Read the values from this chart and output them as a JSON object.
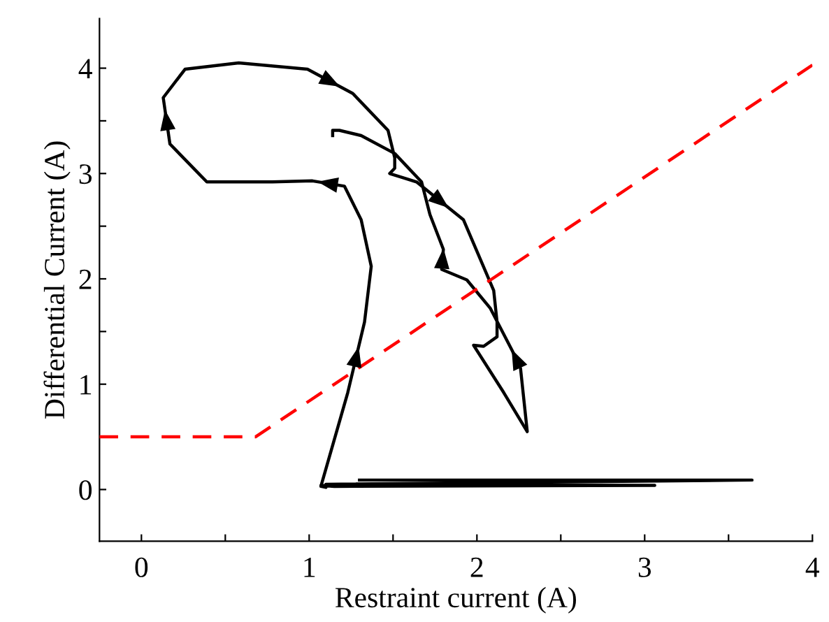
{
  "chart_data": {
    "type": "line",
    "xlabel": "Restraint current (A)",
    "ylabel": "Differential Current (A)",
    "xlim": [
      -0.25,
      4.0
    ],
    "ylim": [
      -0.49,
      4.47
    ],
    "xticks": [
      0,
      {
        "value": 0.5,
        "label": null
      },
      1,
      {
        "value": 1.5,
        "label": null
      },
      2,
      {
        "value": 2.5,
        "label": null
      },
      3,
      {
        "value": 3.5,
        "label": null
      },
      4
    ],
    "yticks": [
      0,
      {
        "value": 0.5,
        "label": null
      },
      1,
      {
        "value": 1.5,
        "label": null
      },
      2,
      {
        "value": 2.5,
        "label": null
      },
      3,
      {
        "value": 3.5,
        "label": null
      },
      4
    ],
    "grid": false,
    "legend": false,
    "marker": "none",
    "series": [
      {
        "color": "#000000",
        "line_style": "solid",
        "x": [
          1.3,
          3.64,
          1.1,
          3.06,
          1.15,
          1.07,
          1.1,
          1.07,
          1.23,
          1.33,
          1.37,
          1.31,
          1.21,
          1.02,
          0.78,
          0.39,
          0.17,
          0.13,
          0.26,
          0.58,
          0.99,
          1.26,
          1.47,
          1.51,
          1.51,
          1.48,
          1.64,
          1.92,
          2.1,
          2.12,
          2.12,
          2.04,
          1.98,
          2.16,
          2.3,
          2.26,
          2.21,
          2.08,
          1.94,
          1.79,
          1.8,
          1.72,
          1.67,
          1.51,
          1.31,
          1.18,
          1.14,
          1.14
        ],
        "values": [
          0.09,
          0.09,
          0.05,
          0.04,
          0.03,
          0.04,
          0.02,
          0.03,
          0.92,
          1.59,
          2.12,
          2.56,
          2.88,
          2.93,
          2.92,
          2.92,
          3.28,
          3.72,
          3.99,
          4.05,
          3.99,
          3.76,
          3.41,
          3.15,
          3.05,
          3.0,
          2.92,
          2.56,
          1.89,
          1.59,
          1.45,
          1.36,
          1.37,
          0.92,
          0.55,
          1.15,
          1.32,
          1.72,
          1.99,
          2.09,
          2.28,
          2.61,
          2.92,
          3.19,
          3.36,
          3.41,
          3.41,
          3.36
        ]
      },
      {
        "color": "#ff0000",
        "line_style": "dashed",
        "x": [
          -0.25,
          0.68,
          4.0
        ],
        "values": [
          0.5,
          0.5,
          4.03
        ]
      }
    ]
  }
}
